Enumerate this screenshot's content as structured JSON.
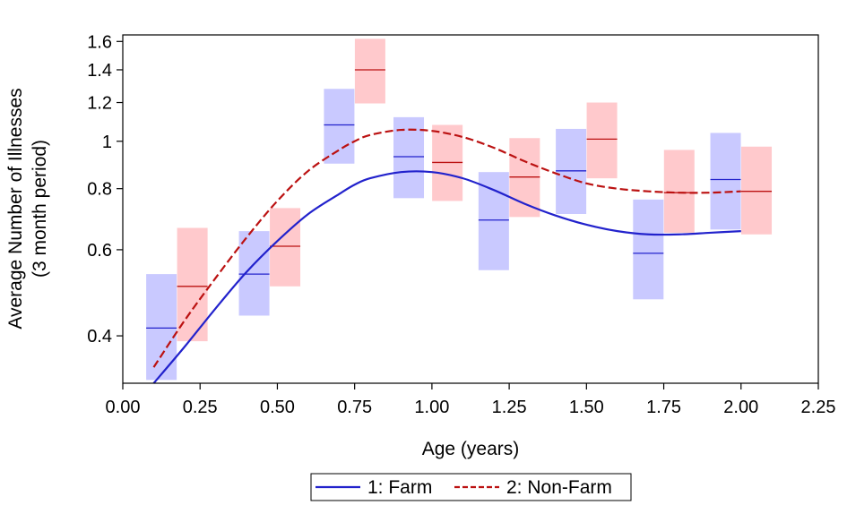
{
  "chart_data": {
    "type": "line",
    "xlabel": "Age (years)",
    "ylabel": [
      "Average Number of Illnesses",
      "(3 month period)"
    ],
    "xlim": [
      0.0,
      2.25
    ],
    "ylim": [
      0.32,
      1.65
    ],
    "yscale": "log",
    "x_ticks": [
      "0.00",
      "0.25",
      "0.50",
      "0.75",
      "1.00",
      "1.25",
      "1.50",
      "1.75",
      "2.00",
      "2.25"
    ],
    "x_tick_values": [
      0.0,
      0.25,
      0.5,
      0.75,
      1.0,
      1.25,
      1.5,
      1.75,
      2.0,
      2.25
    ],
    "y_ticks": [
      "0.4",
      "0.6",
      "0.8",
      "1",
      "1.2",
      "1.4",
      "1.6"
    ],
    "y_tick_values": [
      0.4,
      0.6,
      0.8,
      1.0,
      1.2,
      1.4,
      1.6
    ],
    "grid": false,
    "legend_position": "bottom-center",
    "series": [
      {
        "name": "1: Farm",
        "color": "#2222cc",
        "style": "solid",
        "curve_x": [
          0.1,
          0.2,
          0.3,
          0.4,
          0.5,
          0.6,
          0.7,
          0.75,
          0.8,
          0.9,
          1.0,
          1.1,
          1.2,
          1.3,
          1.4,
          1.5,
          1.6,
          1.7,
          1.8,
          1.9,
          2.0
        ],
        "curve_y": [
          0.32,
          0.38,
          0.455,
          0.54,
          0.625,
          0.71,
          0.78,
          0.815,
          0.84,
          0.865,
          0.865,
          0.84,
          0.795,
          0.745,
          0.705,
          0.675,
          0.655,
          0.645,
          0.645,
          0.65,
          0.655
        ],
        "box_x": [
          0.125,
          0.425,
          0.7,
          0.925,
          1.2,
          1.45,
          1.7,
          1.95
        ],
        "box_mean": [
          0.415,
          0.535,
          1.08,
          0.93,
          0.69,
          0.87,
          0.59,
          0.835
        ],
        "box_low": [
          0.325,
          0.44,
          0.9,
          0.765,
          0.545,
          0.71,
          0.475,
          0.66
        ],
        "box_high": [
          0.535,
          0.655,
          1.28,
          1.12,
          0.865,
          1.06,
          0.76,
          1.04
        ]
      },
      {
        "name": "2: Non-Farm",
        "color": "#bb1111",
        "style": "dashed",
        "curve_x": [
          0.1,
          0.2,
          0.3,
          0.4,
          0.5,
          0.6,
          0.7,
          0.75,
          0.8,
          0.9,
          1.0,
          1.1,
          1.2,
          1.3,
          1.4,
          1.5,
          1.6,
          1.7,
          1.8,
          1.9,
          2.0
        ],
        "curve_y": [
          0.345,
          0.43,
          0.525,
          0.635,
          0.755,
          0.87,
          0.96,
          1.0,
          1.03,
          1.055,
          1.05,
          1.02,
          0.97,
          0.91,
          0.86,
          0.82,
          0.8,
          0.79,
          0.785,
          0.785,
          0.79
        ],
        "box_x": [
          0.225,
          0.525,
          0.8,
          1.05,
          1.3,
          1.55,
          1.8,
          2.05
        ],
        "box_mean": [
          0.505,
          0.61,
          1.4,
          0.905,
          0.845,
          1.01,
          0.785,
          0.79
        ],
        "box_low": [
          0.39,
          0.505,
          1.195,
          0.755,
          0.7,
          0.84,
          0.65,
          0.645
        ],
        "box_high": [
          0.665,
          0.73,
          1.62,
          1.08,
          1.015,
          1.2,
          0.96,
          0.975
        ]
      }
    ]
  }
}
